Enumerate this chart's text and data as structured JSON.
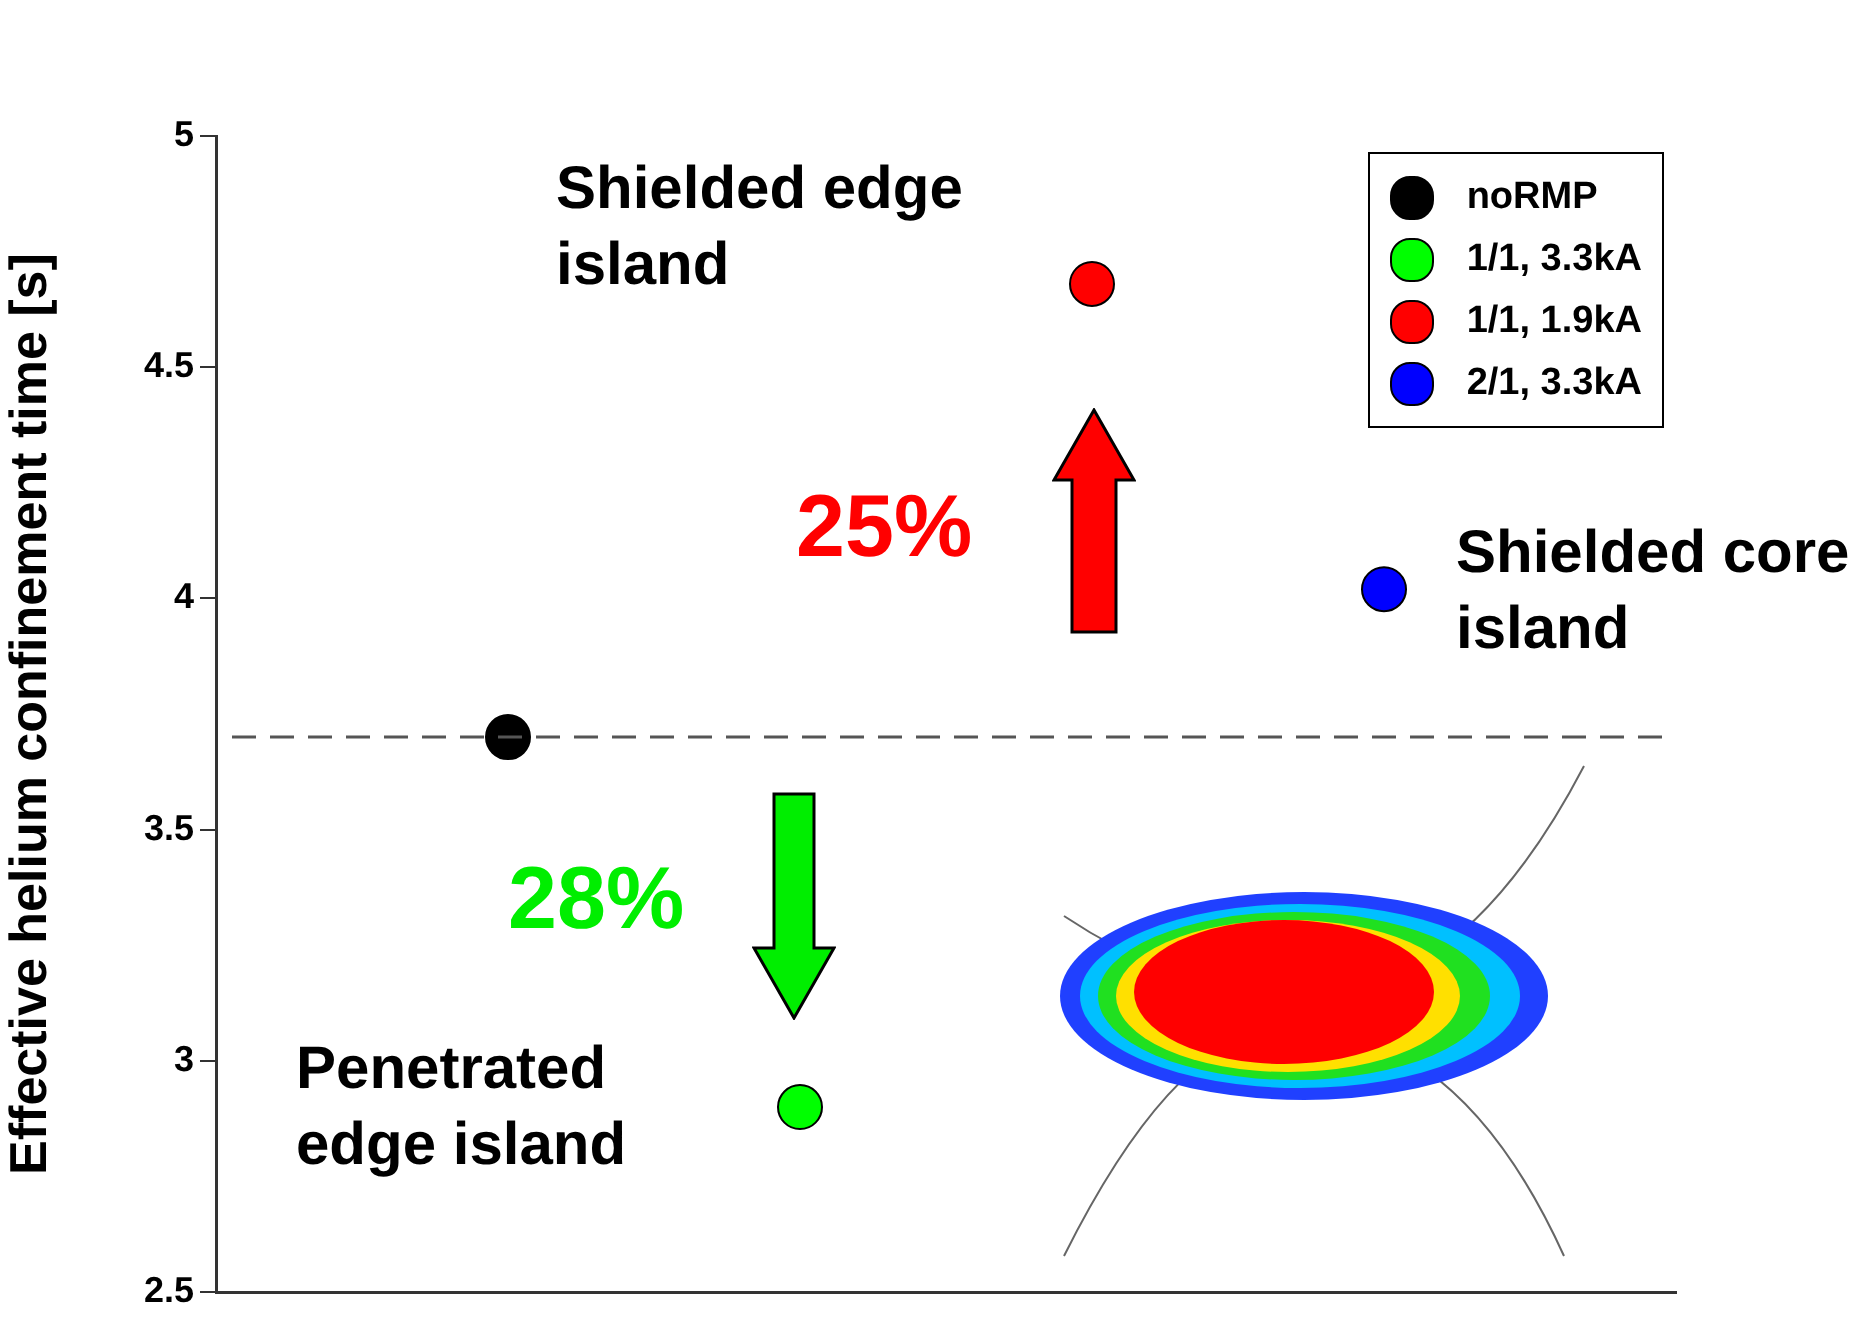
{
  "chart_data": {
    "type": "scatter",
    "ylabel": "Effective helium confinement time [s]",
    "categories": [
      null,
      null,
      null,
      null,
      null,
      null
    ],
    "ylim": [
      2.5,
      5
    ],
    "yticks": [
      2.5,
      3,
      3.5,
      4,
      4.5,
      5
    ],
    "grid": false,
    "legend": "top right",
    "marker": "circle",
    "series": [
      {
        "name": "noRMP",
        "color": "#000000",
        "values": [
          null,
          3.7,
          null,
          null,
          null,
          null
        ]
      },
      {
        "name": "1/1, 3.3kA",
        "color": "#00ff00",
        "values": [
          null,
          null,
          2.9,
          null,
          null,
          null
        ]
      },
      {
        "name": "1/1, 1.9kA",
        "color": "#ff0000",
        "values": [
          null,
          null,
          null,
          4.68,
          null,
          null
        ]
      },
      {
        "name": "2/1, 3.3kA",
        "color": "#0000ff",
        "values": [
          null,
          null,
          null,
          null,
          4.02,
          null
        ]
      }
    ],
    "ref_lines": [
      {
        "axis": "y",
        "value": 3.7,
        "color": "#555555",
        "line_style": "dashed"
      }
    ],
    "annotations": [
      "Shielded edge island",
      "25%",
      "Shielded core island",
      "28%",
      "Penetrated edge island"
    ]
  }
}
